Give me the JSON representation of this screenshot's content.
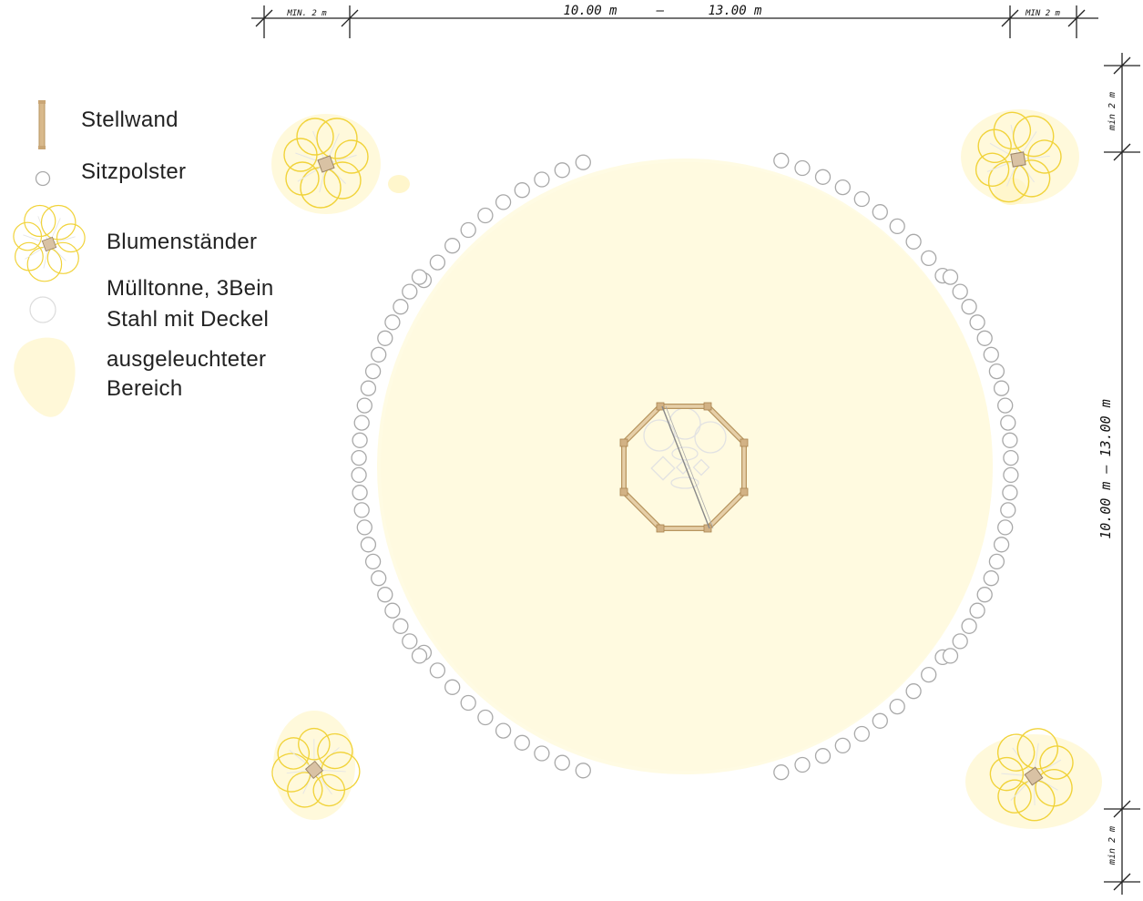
{
  "legend": {
    "stellwand": "Stellwand",
    "sitzpolster": "Sitzpolster",
    "blumenstaender": "Blumenständer",
    "muelltonne_line1": "Mülltonne, 3Bein",
    "muelltonne_line2": "Stahl mit Deckel",
    "bereich_line1": "ausgeleuchteter",
    "bereich_line2": "Bereich"
  },
  "dimensions": {
    "top_left": "MIN. 2 m",
    "top_center_a": "10.00 m",
    "top_center_sep": "–",
    "top_center_b": "13.00 m",
    "top_right": "MIN 2 m",
    "right_top": "min 2 m",
    "right_center": "10.00 m – 13.00 m",
    "right_bottom": "min 2 m"
  },
  "colors": {
    "lit_area": "#fffbe3",
    "seat_stroke": "#a9a9a9",
    "flower_stroke": "#f1d33a",
    "wall_fill": "#d8b98c",
    "wall_stroke": "#b8955f",
    "pot_fill": "#d9c2a4",
    "dim_line": "#222222"
  }
}
